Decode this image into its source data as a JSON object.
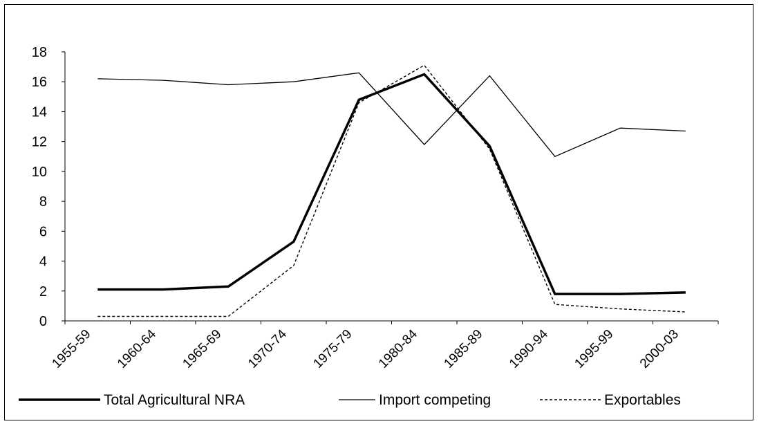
{
  "chart_data": {
    "type": "line",
    "title": "",
    "xlabel": "",
    "ylabel": "",
    "categories": [
      "1955-59",
      "1960-64",
      "1965-69",
      "1970-74",
      "1975-79",
      "1980-84",
      "1985-89",
      "1990-94",
      "1995-99",
      "2000-03"
    ],
    "ylim": [
      0,
      18
    ],
    "yticks": [
      0,
      2,
      4,
      6,
      8,
      10,
      12,
      14,
      16,
      18
    ],
    "grid": false,
    "legend_position": "bottom",
    "series": [
      {
        "name": "Total Agricultural NRA",
        "style": "thick-solid",
        "color": "#000000",
        "values": [
          2.1,
          2.1,
          2.3,
          5.3,
          14.8,
          16.5,
          11.7,
          1.8,
          1.8,
          1.9
        ]
      },
      {
        "name": "Import competing",
        "style": "thin-solid",
        "color": "#000000",
        "values": [
          16.2,
          16.1,
          15.8,
          16.0,
          16.6,
          11.8,
          16.4,
          11.0,
          12.9,
          12.7
        ]
      },
      {
        "name": "Exportables",
        "style": "dotted",
        "color": "#000000",
        "values": [
          0.3,
          0.3,
          0.3,
          3.7,
          14.6,
          17.1,
          11.5,
          1.1,
          0.8,
          0.6
        ]
      }
    ]
  }
}
